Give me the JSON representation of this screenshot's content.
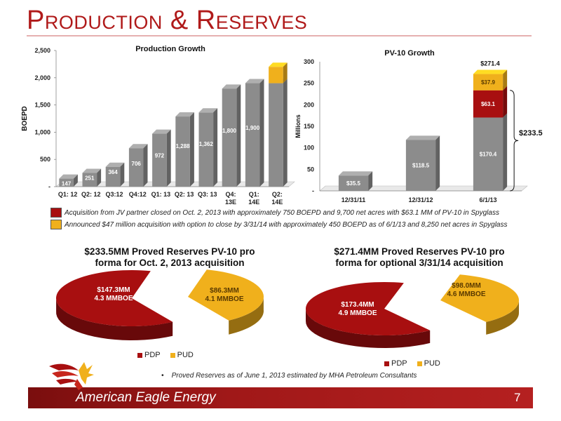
{
  "slide": {
    "title": "Production & Reserves",
    "page_number": "7",
    "brand": "American Eagle Energy",
    "footnote": "Proved Reserves as of June 1, 2013 estimated by MHA Petroleum Consultants",
    "colors": {
      "accent": "#b01a1a",
      "bar_gray": "#8c8c8c",
      "pdp_red": "#a80f10",
      "pud_gold": "#f0b01c"
    }
  },
  "legend_notes": [
    {
      "color": "#a80f10",
      "text": "Acquisition from JV partner closed on Oct. 2, 2013 with approximately 750 BOEPD and 9,700 net acres with $63.1 MM of PV-10 in Spyglass"
    },
    {
      "color": "#f0b01c",
      "text": "Announced $47 million acquisition with option to close by 3/31/14 with approximately 450 BOEPD as of 6/1/13 and 8,250 net acres in Spyglass"
    }
  ],
  "chart_data": [
    {
      "type": "bar",
      "title": "Production Growth",
      "ylabel": "BOEPD",
      "xlabel": "",
      "ylim": [
        0,
        2500
      ],
      "yticks": [
        "-",
        "500",
        "1,000",
        "1,500",
        "2,000",
        "2,500"
      ],
      "categories": [
        "Q1: 12",
        "Q2: 12",
        "Q3:12",
        "Q4:12",
        "Q1: 13",
        "Q2: 13",
        "Q3: 13",
        "Q4: 13E",
        "Q1: 14E",
        "Q2: 14E"
      ],
      "category_lines": [
        [
          "Q1: 12"
        ],
        [
          "Q2: 12"
        ],
        [
          "Q3:12"
        ],
        [
          "Q4:12"
        ],
        [
          "Q1: 13"
        ],
        [
          "Q2: 13"
        ],
        [
          "Q3: 13"
        ],
        [
          "Q4:",
          "13E"
        ],
        [
          "Q1:",
          "14E"
        ],
        [
          "Q2:",
          "14E"
        ]
      ],
      "values": [
        147,
        251,
        364,
        706,
        972,
        1288,
        1362,
        1800,
        1900,
        1900
      ],
      "data_labels": [
        "147",
        "251",
        "364",
        "706",
        "972",
        "1,288",
        "1,362",
        "1,800",
        "1,900",
        ""
      ],
      "stacked_addition": {
        "category": "Q2: 14E",
        "value": 300,
        "color": "#f0b01c"
      }
    },
    {
      "type": "bar",
      "title": "PV-10 Growth",
      "ylabel": "Millions",
      "xlabel": "",
      "ylim": [
        0,
        300
      ],
      "yticks": [
        "-",
        "50",
        "100",
        "150",
        "200",
        "250",
        "300"
      ],
      "categories": [
        "12/31/11",
        "12/31/12",
        "6/1/13"
      ],
      "series": [
        {
          "values": [
            35.5,
            118.5,
            170.4
          ],
          "labels": [
            "$35.5",
            "$118.5",
            "$170.4"
          ],
          "color": "#8c8c8c"
        },
        {
          "values": [
            0,
            0,
            63.1
          ],
          "labels": [
            "",
            "",
            "$63.1"
          ],
          "color": "#a80f10"
        },
        {
          "values": [
            0,
            0,
            37.9
          ],
          "labels": [
            "",
            "",
            "$37.9"
          ],
          "color": "#f0b01c"
        }
      ],
      "total_label": "$271.4",
      "bracket_label": "$233.5"
    },
    {
      "type": "pie",
      "title": "$233.5MM Proved Reserves PV-10 pro forma for Oct. 2, 2013 acquisition",
      "title_lines": [
        "$233.5MM Proved Reserves PV-10 pro",
        "forma for Oct. 2, 2013 acquisition"
      ],
      "slices": [
        {
          "name": "PDP",
          "value": 147.3,
          "label": [
            "$147.3MM",
            "4.3 MMBOE"
          ],
          "color": "#a80f10"
        },
        {
          "name": "PUD",
          "value": 86.3,
          "label": [
            "$86.3MM",
            "4.1 MMBOE"
          ],
          "color": "#f0b01c"
        }
      ],
      "legend": [
        "PDP",
        "PUD"
      ]
    },
    {
      "type": "pie",
      "title": "$271.4MM Proved Reserves PV-10 pro forma for optional 3/31/14 acquisition",
      "title_lines": [
        "$271.4MM Proved Reserves PV-10 pro",
        "forma for optional 3/31/14 acquisition"
      ],
      "slices": [
        {
          "name": "PDP",
          "value": 173.4,
          "label": [
            "$173.4MM",
            "4.9 MMBOE"
          ],
          "color": "#a80f10"
        },
        {
          "name": "PUD",
          "value": 98.0,
          "label": [
            "$98.0MM",
            "4.6 MMBOE"
          ],
          "color": "#f0b01c"
        }
      ],
      "legend": [
        "PDP",
        "PUD"
      ]
    }
  ]
}
